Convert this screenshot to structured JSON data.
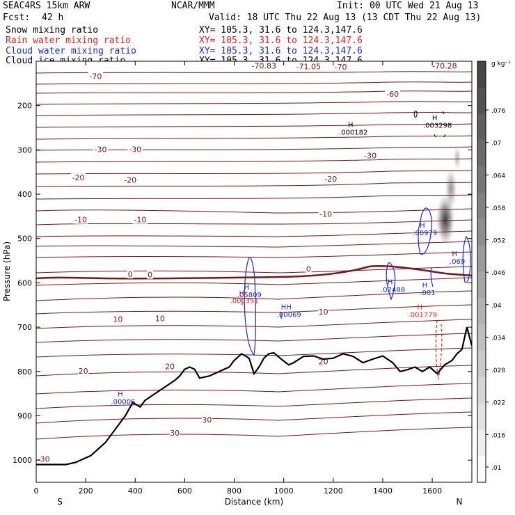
{
  "header": {
    "model": "SEAC4RS 15km ARW",
    "org": "NCAR/MMM",
    "init": "Init: 00 UTC Wed 21 Aug 13",
    "fcst_label": "Fcst:",
    "fcst_value": "42 h",
    "valid": "Valid: 18 UTC Thu 22 Aug 13 (13 CDT Thu 22 Aug 13)",
    "xy": "XY= 105.3, 31.6 to 124.3,147.6"
  },
  "legend": [
    {
      "label": "Snow mixing ratio",
      "color": "#000000"
    },
    {
      "label": "Rain water mixing ratio",
      "color": "#e8201c"
    },
    {
      "label": "Cloud water mixing ratio",
      "color": "#1a28d8"
    },
    {
      "label": "Cloud ice mixing ratio",
      "color": "#000000"
    }
  ],
  "chart_data": {
    "type": "cross-section",
    "xlabel": "Distance (km)",
    "ylabel": "Pressure (hPa)",
    "xlim": [
      0,
      1760
    ],
    "ylim": [
      1050,
      100
    ],
    "xticks": [
      0,
      200,
      400,
      600,
      800,
      1000,
      1200,
      1400,
      1600
    ],
    "yticks": [
      1000,
      900,
      800,
      700,
      600,
      500,
      400,
      300,
      200,
      100
    ],
    "yticks_visible": [
      1000,
      900,
      800,
      700,
      600,
      500,
      400,
      300,
      200
    ],
    "x_end_labels": {
      "left": "S",
      "right": "N"
    },
    "colorbar": {
      "units": "g kg⁻¹",
      "labels": [
        ".076",
        ".07",
        ".064",
        ".058",
        ".052",
        ".046",
        ".04",
        ".034",
        ".028",
        ".022",
        ".016",
        ".01"
      ],
      "levels": [
        0.076,
        0.07,
        0.064,
        0.058,
        0.052,
        0.046,
        0.04,
        0.034,
        0.028,
        0.022,
        0.016,
        0.01
      ]
    },
    "temperature_labels": [
      {
        "text": "-70",
        "x": 240,
        "p": 135
      },
      {
        "text": "-70.83",
        "x": 920,
        "p": 112
      },
      {
        "text": "-71.05",
        "x": 1100,
        "p": 113
      },
      {
        "text": "-70",
        "x": 1230,
        "p": 114
      },
      {
        "text": "-70.28",
        "x": 1650,
        "p": 112
      },
      {
        "text": "-60",
        "x": 1440,
        "p": 175
      },
      {
        "text": "-30",
        "x": 260,
        "p": 300
      },
      {
        "text": "-30",
        "x": 400,
        "p": 300
      },
      {
        "text": "-30",
        "x": 1350,
        "p": 314
      },
      {
        "text": "-20",
        "x": 170,
        "p": 364
      },
      {
        "text": "-20",
        "x": 380,
        "p": 369
      },
      {
        "text": "-20",
        "x": 1190,
        "p": 367
      },
      {
        "text": "-10",
        "x": 180,
        "p": 459
      },
      {
        "text": "-10",
        "x": 420,
        "p": 459
      },
      {
        "text": "-10",
        "x": 1170,
        "p": 446
      },
      {
        "text": "0",
        "x": 380,
        "p": 582
      },
      {
        "text": "0",
        "x": 460,
        "p": 583
      },
      {
        "text": "0",
        "x": 1100,
        "p": 570
      },
      {
        "text": "10",
        "x": 330,
        "p": 683
      },
      {
        "text": "10",
        "x": 500,
        "p": 682
      },
      {
        "text": "10",
        "x": 1160,
        "p": 667
      },
      {
        "text": "20",
        "x": 190,
        "p": 800
      },
      {
        "text": "20",
        "x": 540,
        "p": 790
      },
      {
        "text": "20",
        "x": 1160,
        "p": 779
      },
      {
        "text": "30",
        "x": 560,
        "p": 940
      },
      {
        "text": "30",
        "x": 690,
        "p": 910
      },
      {
        "text": "-30",
        "x": 30,
        "p": 999
      }
    ],
    "cloud_ice_maxima": [
      {
        "text": "H",
        "value": ".000182",
        "x": 1270,
        "p": 248
      },
      {
        "text": "H",
        "value": ".003298",
        "x": 1610,
        "p": 233
      }
    ],
    "cloud_water_maxima": [
      {
        "text": "H",
        "value": ".05809",
        "x": 850,
        "p": 615
      },
      {
        "text": "HH",
        "value": ".00069",
        "x": 1010,
        "p": 660
      },
      {
        "text": "H",
        "value": ".02488",
        "x": 1430,
        "p": 603
      },
      {
        "text": "H",
        "value": ".00979",
        "x": 1560,
        "p": 475
      },
      {
        "text": "H",
        "value": ".001",
        "x": 1570,
        "p": 610
      },
      {
        "text": "H",
        "value": ".069",
        "x": 1690,
        "p": 540
      },
      {
        "text": "H",
        "value": ".00006",
        "x": 340,
        "p": 856
      }
    ],
    "rain_maxima": [
      {
        "text": "H",
        "value": ".000351",
        "x": 830,
        "p": 628
      },
      {
        "text": "H",
        "value": ".001779",
        "x": 1550,
        "p": 660
      }
    ],
    "terrain": [
      [
        0,
        1010
      ],
      [
        60,
        1010
      ],
      [
        120,
        1010
      ],
      [
        160,
        1005
      ],
      [
        220,
        990
      ],
      [
        280,
        960
      ],
      [
        320,
        930
      ],
      [
        360,
        900
      ],
      [
        390,
        870
      ],
      [
        420,
        880
      ],
      [
        440,
        865
      ],
      [
        480,
        850
      ],
      [
        520,
        835
      ],
      [
        560,
        820
      ],
      [
        580,
        810
      ],
      [
        600,
        795
      ],
      [
        620,
        790
      ],
      [
        640,
        795
      ],
      [
        660,
        815
      ],
      [
        700,
        810
      ],
      [
        740,
        800
      ],
      [
        780,
        790
      ],
      [
        800,
        775
      ],
      [
        830,
        760
      ],
      [
        860,
        770
      ],
      [
        880,
        805
      ],
      [
        900,
        790
      ],
      [
        920,
        770
      ],
      [
        940,
        760
      ],
      [
        960,
        758
      ],
      [
        990,
        772
      ],
      [
        1020,
        785
      ],
      [
        1040,
        780
      ],
      [
        1080,
        766
      ],
      [
        1120,
        765
      ],
      [
        1160,
        772
      ],
      [
        1200,
        770
      ],
      [
        1240,
        760
      ],
      [
        1280,
        766
      ],
      [
        1320,
        780
      ],
      [
        1360,
        772
      ],
      [
        1400,
        765
      ],
      [
        1440,
        780
      ],
      [
        1470,
        800
      ],
      [
        1500,
        796
      ],
      [
        1530,
        790
      ],
      [
        1560,
        800
      ],
      [
        1590,
        790
      ],
      [
        1620,
        805
      ],
      [
        1650,
        785
      ],
      [
        1680,
        775
      ],
      [
        1700,
        760
      ],
      [
        1720,
        750
      ],
      [
        1740,
        700
      ],
      [
        1760,
        742
      ]
    ]
  }
}
